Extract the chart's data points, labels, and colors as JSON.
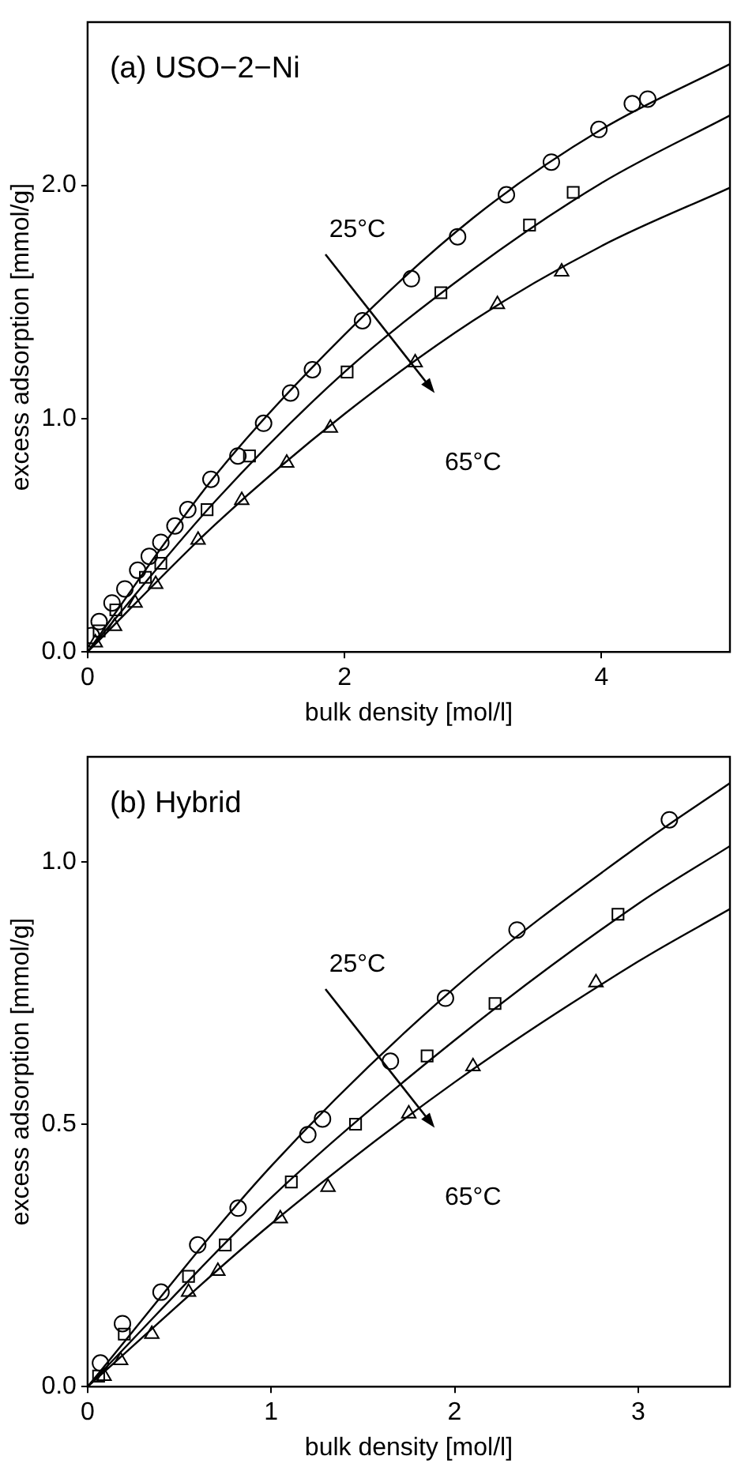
{
  "chart_data": [
    {
      "type": "scatter",
      "title": "(a) USO−2−Ni",
      "xlabel": "bulk density [mol/l]",
      "ylabel": "excess adsorption [mmol/g]",
      "xlim": [
        0,
        5
      ],
      "xticks": [
        0,
        2,
        4
      ],
      "ylim": [
        0,
        2.7
      ],
      "yticks": [
        {
          "value": 0,
          "label": "0.0"
        },
        {
          "value": 1,
          "label": "1.0"
        },
        {
          "value": 2,
          "label": "2.0"
        }
      ],
      "grid": false,
      "legend": false,
      "annotations": [
        "25°C",
        "65°C"
      ],
      "series": [
        {
          "color": "#000000",
          "marker": "circle",
          "x": [
            0.03,
            0.09,
            0.19,
            0.29,
            0.39,
            0.48,
            0.57,
            0.68,
            0.78,
            0.96,
            1.17,
            1.37,
            1.58,
            1.75,
            2.14,
            2.52,
            2.88,
            3.26,
            3.61,
            3.98,
            4.24,
            4.36
          ],
          "values": [
            0.07,
            0.13,
            0.21,
            0.27,
            0.35,
            0.41,
            0.47,
            0.54,
            0.61,
            0.74,
            0.84,
            0.98,
            1.11,
            1.21,
            1.42,
            1.6,
            1.78,
            1.96,
            2.1,
            2.24,
            2.35,
            2.37
          ]
        },
        {
          "color": "#000000",
          "marker": "square",
          "x": [
            0.09,
            0.22,
            0.45,
            0.57,
            0.93,
            1.26,
            2.02,
            2.75,
            3.44,
            3.78
          ],
          "values": [
            0.09,
            0.18,
            0.32,
            0.38,
            0.61,
            0.84,
            1.2,
            1.54,
            1.83,
            1.97
          ]
        },
        {
          "color": "#000000",
          "marker": "triangle",
          "x": [
            0.06,
            0.21,
            0.37,
            0.53,
            0.86,
            1.2,
            1.55,
            1.89,
            2.55,
            3.19,
            3.69
          ],
          "values": [
            0.04,
            0.11,
            0.21,
            0.29,
            0.48,
            0.65,
            0.81,
            0.96,
            1.24,
            1.49,
            1.63
          ]
        },
        {
          "type": "line",
          "color": "#000000",
          "marker": "none",
          "x": [
            0,
            1,
            2,
            3,
            4,
            5
          ],
          "values": [
            0,
            0.76,
            1.36,
            1.86,
            2.24,
            2.52
          ]
        },
        {
          "type": "line",
          "color": "#000000",
          "marker": "none",
          "x": [
            0,
            1,
            2,
            3,
            4,
            5
          ],
          "values": [
            0,
            0.65,
            1.2,
            1.64,
            2.01,
            2.3
          ]
        },
        {
          "type": "line",
          "color": "#000000",
          "marker": "none",
          "x": [
            0,
            1,
            2,
            3,
            4,
            5
          ],
          "values": [
            0,
            0.55,
            1.02,
            1.42,
            1.74,
            1.99
          ]
        }
      ]
    },
    {
      "type": "scatter",
      "title": "(b) Hybrid",
      "xlabel": "bulk density [mol/l]",
      "ylabel": "excess adsorption [mmol/g]",
      "xlim": [
        0,
        3.5
      ],
      "xticks": [
        0,
        1,
        2,
        3
      ],
      "ylim": [
        0,
        1.2
      ],
      "yticks": [
        {
          "value": 0,
          "label": "0.0"
        },
        {
          "value": 0.5,
          "label": "0.5"
        },
        {
          "value": 1,
          "label": "1.0"
        }
      ],
      "grid": false,
      "legend": false,
      "annotations": [
        "25°C",
        "65°C"
      ],
      "series": [
        {
          "color": "#000000",
          "marker": "circle",
          "x": [
            0.07,
            0.19,
            0.4,
            0.6,
            0.82,
            1.2,
            1.28,
            1.65,
            1.95,
            2.34,
            3.17
          ],
          "values": [
            0.045,
            0.12,
            0.18,
            0.27,
            0.34,
            0.48,
            0.51,
            0.62,
            0.74,
            0.87,
            1.08
          ]
        },
        {
          "color": "#000000",
          "marker": "square",
          "x": [
            0.06,
            0.2,
            0.55,
            0.75,
            1.11,
            1.46,
            1.85,
            2.22,
            2.89
          ],
          "values": [
            0.02,
            0.1,
            0.21,
            0.27,
            0.39,
            0.5,
            0.63,
            0.73,
            0.9
          ]
        },
        {
          "color": "#000000",
          "marker": "triangle",
          "x": [
            0.09,
            0.18,
            0.35,
            0.55,
            0.71,
            1.05,
            1.31,
            1.75,
            2.1,
            2.77
          ],
          "values": [
            0.02,
            0.05,
            0.1,
            0.18,
            0.22,
            0.32,
            0.38,
            0.52,
            0.61,
            0.77
          ]
        },
        {
          "type": "line",
          "color": "#000000",
          "marker": "none",
          "x": [
            0,
            1,
            2,
            3,
            3.5
          ],
          "values": [
            0,
            0.42,
            0.76,
            1.03,
            1.15
          ]
        },
        {
          "type": "line",
          "color": "#000000",
          "marker": "none",
          "x": [
            0,
            1,
            2,
            3,
            3.5
          ],
          "values": [
            0,
            0.36,
            0.66,
            0.92,
            1.03
          ]
        },
        {
          "type": "line",
          "color": "#000000",
          "marker": "none",
          "x": [
            0,
            1,
            2,
            3,
            3.5
          ],
          "values": [
            0,
            0.31,
            0.58,
            0.81,
            0.91
          ]
        }
      ]
    }
  ]
}
